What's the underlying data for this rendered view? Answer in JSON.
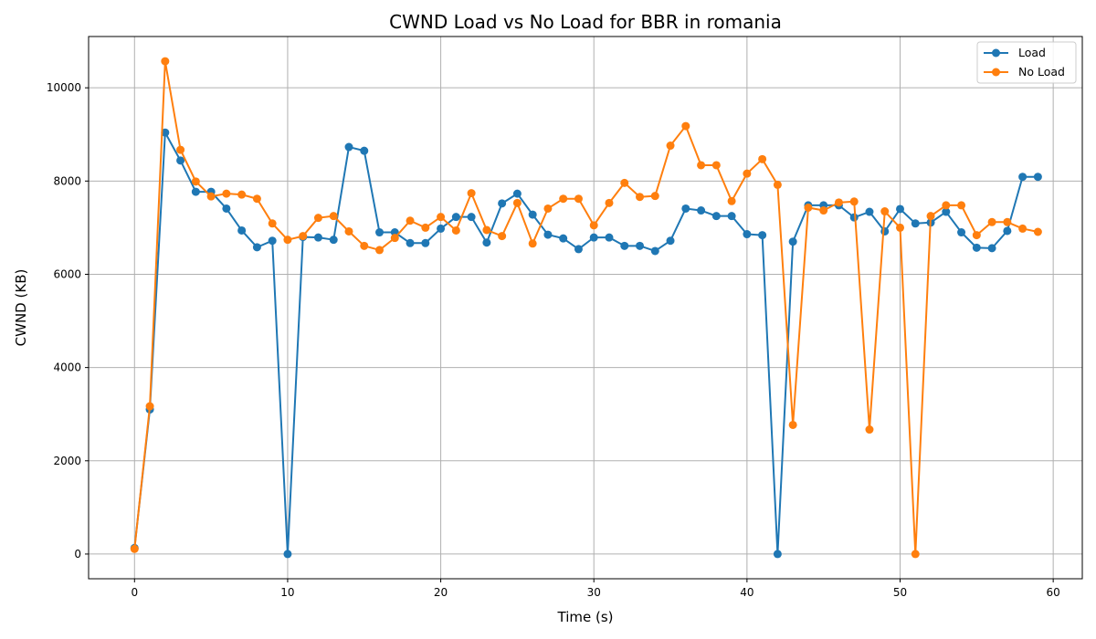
{
  "chart_data": {
    "type": "line",
    "title": "CWND Load vs No Load for BBR in romania",
    "xlabel": "Time (s)",
    "ylabel": "CWND (KB)",
    "xlim": [
      -3,
      61.9
    ],
    "ylim": [
      -530,
      11100
    ],
    "xticks": [
      0,
      10,
      20,
      30,
      40,
      50,
      60
    ],
    "yticks": [
      0,
      2000,
      4000,
      6000,
      8000,
      10000
    ],
    "grid": true,
    "legend_position": "top-right",
    "x": [
      0,
      1,
      2,
      3,
      4,
      5,
      6,
      7,
      8,
      9,
      10,
      11,
      12,
      13,
      14,
      15,
      16,
      17,
      18,
      19,
      20,
      21,
      22,
      23,
      24,
      25,
      26,
      27,
      28,
      29,
      30,
      31,
      32,
      33,
      34,
      35,
      36,
      37,
      38,
      39,
      40,
      41,
      42,
      43,
      44,
      45,
      46,
      47,
      48,
      49,
      50,
      51,
      52,
      53,
      54,
      55,
      56,
      57,
      58,
      59
    ],
    "series": [
      {
        "name": "Load",
        "color": "#1f77b4",
        "values": [
          130,
          3100,
          9040,
          8440,
          7770,
          7770,
          7410,
          6940,
          6580,
          6720,
          0,
          6800,
          6790,
          6740,
          8730,
          8650,
          6900,
          6900,
          6670,
          6670,
          6980,
          7230,
          7230,
          6680,
          7520,
          7730,
          7280,
          6850,
          6770,
          6540,
          6790,
          6790,
          6610,
          6610,
          6500,
          6720,
          7410,
          7370,
          7250,
          7250,
          6860,
          6840,
          0,
          6700,
          7480,
          7480,
          7480,
          7220,
          7340,
          6920,
          7400,
          7090,
          7110,
          7340,
          6900,
          6570,
          6560,
          6930,
          8090,
          8090
        ]
      },
      {
        "name": "No Load",
        "color": "#ff7f0e",
        "values": [
          110,
          3170,
          10570,
          8670,
          7990,
          7670,
          7730,
          7710,
          7620,
          7090,
          6740,
          6820,
          7210,
          7250,
          6920,
          6610,
          6520,
          6780,
          7150,
          7000,
          7230,
          6940,
          7740,
          6950,
          6820,
          7530,
          6660,
          7410,
          7620,
          7620,
          7050,
          7530,
          7960,
          7660,
          7680,
          8760,
          9180,
          8340,
          8340,
          7570,
          8160,
          8470,
          7920,
          2770,
          7430,
          7370,
          7540,
          7560,
          2670,
          7350,
          7000,
          0,
          7250,
          7480,
          7480,
          6840,
          7120,
          7120,
          6980,
          6910
        ]
      }
    ]
  }
}
